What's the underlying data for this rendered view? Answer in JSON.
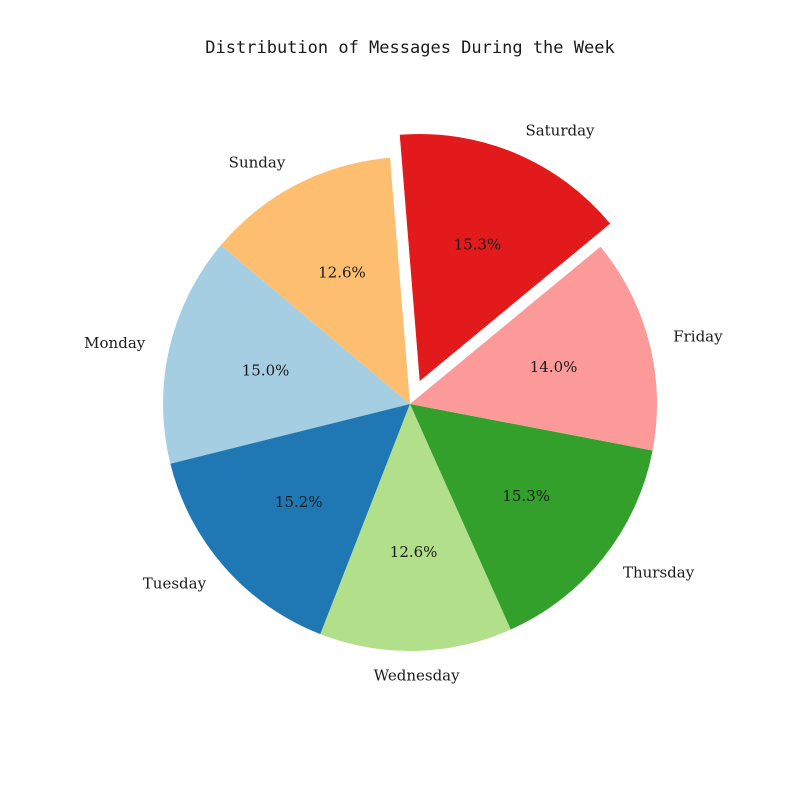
{
  "chart_data": {
    "type": "pie",
    "title": "Distribution of Messages During the Week",
    "start_angle_deg": 140,
    "direction": "counterclockwise",
    "explode": [
      "Saturday"
    ],
    "slices": [
      {
        "label": "Monday",
        "value": 15.0,
        "pct_label": "15.0%",
        "color": "#a6cee3"
      },
      {
        "label": "Tuesday",
        "value": 15.2,
        "pct_label": "15.2%",
        "color": "#1f78b4"
      },
      {
        "label": "Wednesday",
        "value": 12.6,
        "pct_label": "12.6%",
        "color": "#b2df8a"
      },
      {
        "label": "Thursday",
        "value": 15.3,
        "pct_label": "15.3%",
        "color": "#33a02c"
      },
      {
        "label": "Friday",
        "value": 14.0,
        "pct_label": "14.0%",
        "color": "#fb9a99"
      },
      {
        "label": "Saturday",
        "value": 15.3,
        "pct_label": "15.3%",
        "color": "#e31a1c"
      },
      {
        "label": "Sunday",
        "value": 12.6,
        "pct_label": "12.6%",
        "color": "#fdbf6f"
      }
    ]
  }
}
